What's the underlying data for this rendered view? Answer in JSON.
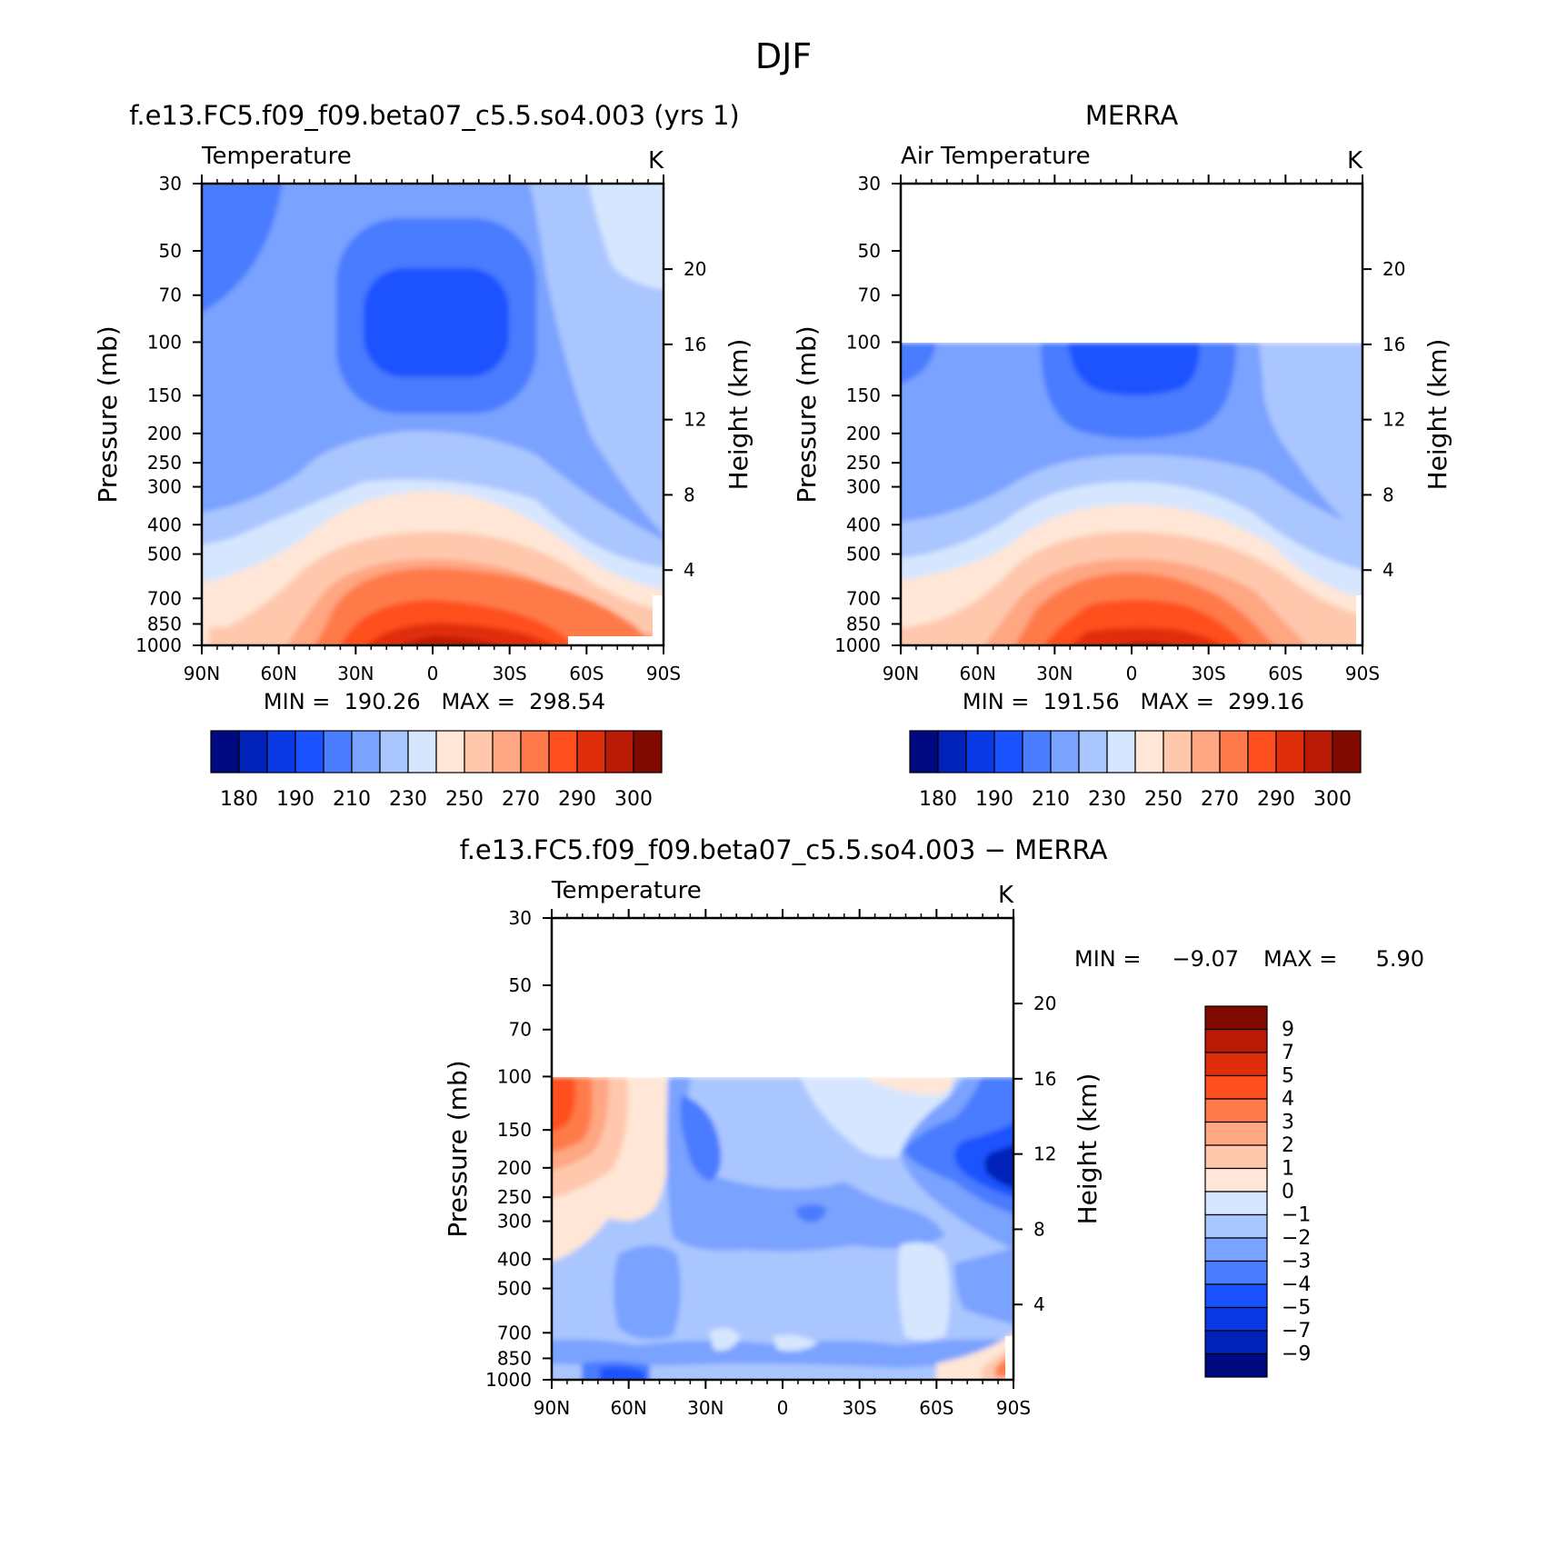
{
  "page": {
    "title": "DJF"
  },
  "colors": {
    "abs_scale": [
      "#000a80",
      "#0022b8",
      "#0a3ae6",
      "#1a52ff",
      "#4a7cff",
      "#7aa2ff",
      "#aac6ff",
      "#d6e6ff",
      "#ffe6d6",
      "#ffc8ad",
      "#ffa682",
      "#ff7a4a",
      "#ff4f1f",
      "#e02d0a",
      "#b81a05",
      "#800a00"
    ],
    "diff_scale": [
      "#000a80",
      "#0022b8",
      "#0a3ae6",
      "#1a52ff",
      "#4a7cff",
      "#7aa2ff",
      "#aac6ff",
      "#d6e6ff",
      "#ffe6d6",
      "#ffc8ad",
      "#ffa682",
      "#ff7a4a",
      "#ff4f1f",
      "#e02d0a",
      "#b81a05",
      "#800a00"
    ]
  },
  "panels": {
    "model": {
      "title": "f.e13.FC5.f09_f09.beta07_c5.5.so4.003 (yrs 1)",
      "left_label": "Temperature",
      "units": "K",
      "min_max": "MIN =  190.26   MAX =  298.54"
    },
    "merra": {
      "title": "MERRA",
      "left_label": "Air Temperature",
      "units": "K",
      "min_max": "MIN =  191.56   MAX =  299.16"
    },
    "diff": {
      "title": "f.e13.FC5.f09_f09.beta07_c5.5.so4.003 − MERRA",
      "left_label": "Temperature",
      "units": "K",
      "min_label": "MIN =",
      "min_value": "−9.07",
      "max_label": "MAX =",
      "max_value": "5.90"
    }
  },
  "axes": {
    "ylabel": "Pressure (mb)",
    "ylabel_right": "Height (km)",
    "pressure_ticks": [
      "30",
      "50",
      "70",
      "100",
      "150",
      "200",
      "250",
      "300",
      "400",
      "500",
      "700",
      "850",
      "1000"
    ],
    "height_ticks": [
      "20",
      "16",
      "12",
      "8",
      "4"
    ],
    "lat_ticks": [
      "90N",
      "60N",
      "30N",
      "0",
      "30S",
      "60S",
      "90S"
    ]
  },
  "colorbars": {
    "abs_labels": [
      "180",
      "190",
      "210",
      "230",
      "250",
      "270",
      "290",
      "300"
    ],
    "diff_labels": [
      "9",
      "7",
      "5",
      "4",
      "3",
      "2",
      "1",
      "0",
      "−1",
      "−2",
      "−3",
      "−4",
      "−5",
      "−7",
      "−9"
    ]
  },
  "chart_data": [
    {
      "type": "heatmap",
      "title": "f.e13.FC5.f09_f09.beta07_c5.5.so4.003 (yrs 1)",
      "variable": "Temperature",
      "units": "K",
      "xlabel": "",
      "ylabel": "Pressure (mb)",
      "y2label": "Height (km)",
      "x": [
        "90N",
        "60N",
        "30N",
        "0",
        "30S",
        "60S",
        "90S"
      ],
      "y": [
        30,
        50,
        70,
        100,
        150,
        200,
        250,
        300,
        400,
        500,
        700,
        850,
        1000
      ],
      "ylim": [
        1000,
        30
      ],
      "log_y": true,
      "contour_levels": [
        180,
        190,
        200,
        210,
        220,
        230,
        240,
        250,
        260,
        270,
        280,
        290,
        295,
        300
      ],
      "min": 190.26,
      "max": 298.54
    },
    {
      "type": "heatmap",
      "title": "MERRA",
      "variable": "Air Temperature",
      "units": "K",
      "xlabel": "",
      "ylabel": "Pressure (mb)",
      "y2label": "Height (km)",
      "x": [
        "90N",
        "60N",
        "30N",
        "0",
        "30S",
        "60S",
        "90S"
      ],
      "y": [
        30,
        50,
        70,
        100,
        150,
        200,
        250,
        300,
        400,
        500,
        700,
        850,
        1000
      ],
      "ylim": [
        1000,
        30
      ],
      "log_y": true,
      "data_top_pressure": 100,
      "min": 191.56,
      "max": 299.16
    },
    {
      "type": "heatmap",
      "title": "f.e13.FC5.f09_f09.beta07_c5.5.so4.003 − MERRA",
      "variable": "Temperature",
      "units": "K",
      "xlabel": "",
      "ylabel": "Pressure (mb)",
      "y2label": "Height (km)",
      "x": [
        "90N",
        "60N",
        "30N",
        "0",
        "30S",
        "60S",
        "90S"
      ],
      "y": [
        30,
        50,
        70,
        100,
        150,
        200,
        250,
        300,
        400,
        500,
        700,
        850,
        1000
      ],
      "ylim": [
        1000,
        30
      ],
      "log_y": true,
      "data_top_pressure": 100,
      "contour_levels": [
        -9,
        -7,
        -5,
        -4,
        -3,
        -2,
        -1,
        0,
        1,
        2,
        3,
        4,
        5,
        7,
        9
      ],
      "min": -9.07,
      "max": 5.9
    }
  ]
}
